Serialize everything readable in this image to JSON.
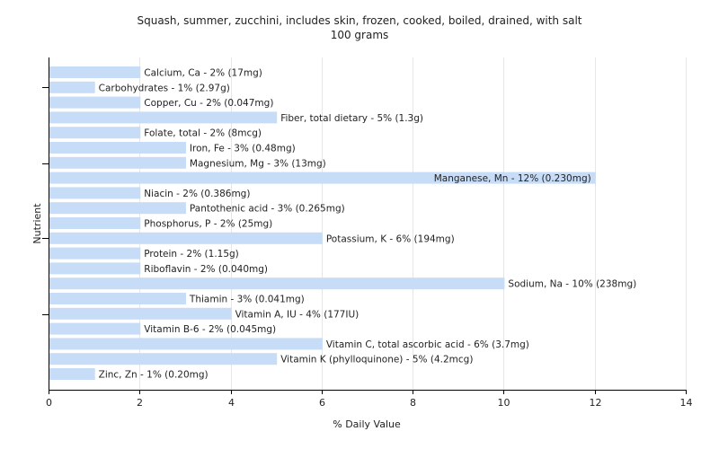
{
  "chart_data": {
    "type": "bar",
    "orientation": "horizontal",
    "title": "Squash, summer, zucchini, includes skin, frozen, cooked, boiled, drained, with salt",
    "subtitle": "100 grams",
    "xlabel": "% Daily Value",
    "ylabel": "Nutrient",
    "xlim": [
      0,
      14
    ],
    "xticks": [
      0,
      2,
      4,
      6,
      8,
      10,
      12,
      14
    ],
    "grid": true,
    "bar_color": "#c6dcf7",
    "categories": [
      "Calcium, Ca",
      "Carbohydrates",
      "Copper, Cu",
      "Fiber, total dietary",
      "Folate, total",
      "Iron, Fe",
      "Magnesium, Mg",
      "Manganese, Mn",
      "Niacin",
      "Pantothenic acid",
      "Phosphorus, P",
      "Potassium, K",
      "Protein",
      "Riboflavin",
      "Sodium, Na",
      "Thiamin",
      "Vitamin A, IU",
      "Vitamin B-6",
      "Vitamin C, total ascorbic acid",
      "Vitamin K (phylloquinone)",
      "Zinc, Zn"
    ],
    "values": [
      2,
      1,
      2,
      5,
      2,
      3,
      3,
      12,
      2,
      3,
      2,
      6,
      2,
      2,
      10,
      3,
      4,
      2,
      6,
      5,
      1
    ],
    "labels": [
      "Calcium, Ca - 2% (17mg)",
      "Carbohydrates - 1% (2.97g)",
      "Copper, Cu - 2% (0.047mg)",
      "Fiber, total dietary - 5% (1.3g)",
      "Folate, total - 2% (8mcg)",
      "Iron, Fe - 3% (0.48mg)",
      "Magnesium, Mg - 3% (13mg)",
      "Manganese, Mn - 12% (0.230mg)",
      "Niacin - 2% (0.386mg)",
      "Pantothenic acid - 3% (0.265mg)",
      "Phosphorus, P - 2% (25mg)",
      "Potassium, K - 6% (194mg)",
      "Protein - 2% (1.15g)",
      "Riboflavin - 2% (0.040mg)",
      "Sodium, Na - 10% (238mg)",
      "Thiamin - 3% (0.041mg)",
      "Vitamin A, IU - 4% (177IU)",
      "Vitamin B-6 - 2% (0.045mg)",
      "Vitamin C, total ascorbic acid - 6% (3.7mg)",
      "Vitamin K (phylloquinone) - 5% (4.2mcg)",
      "Zinc, Zn - 1% (0.20mg)"
    ]
  }
}
